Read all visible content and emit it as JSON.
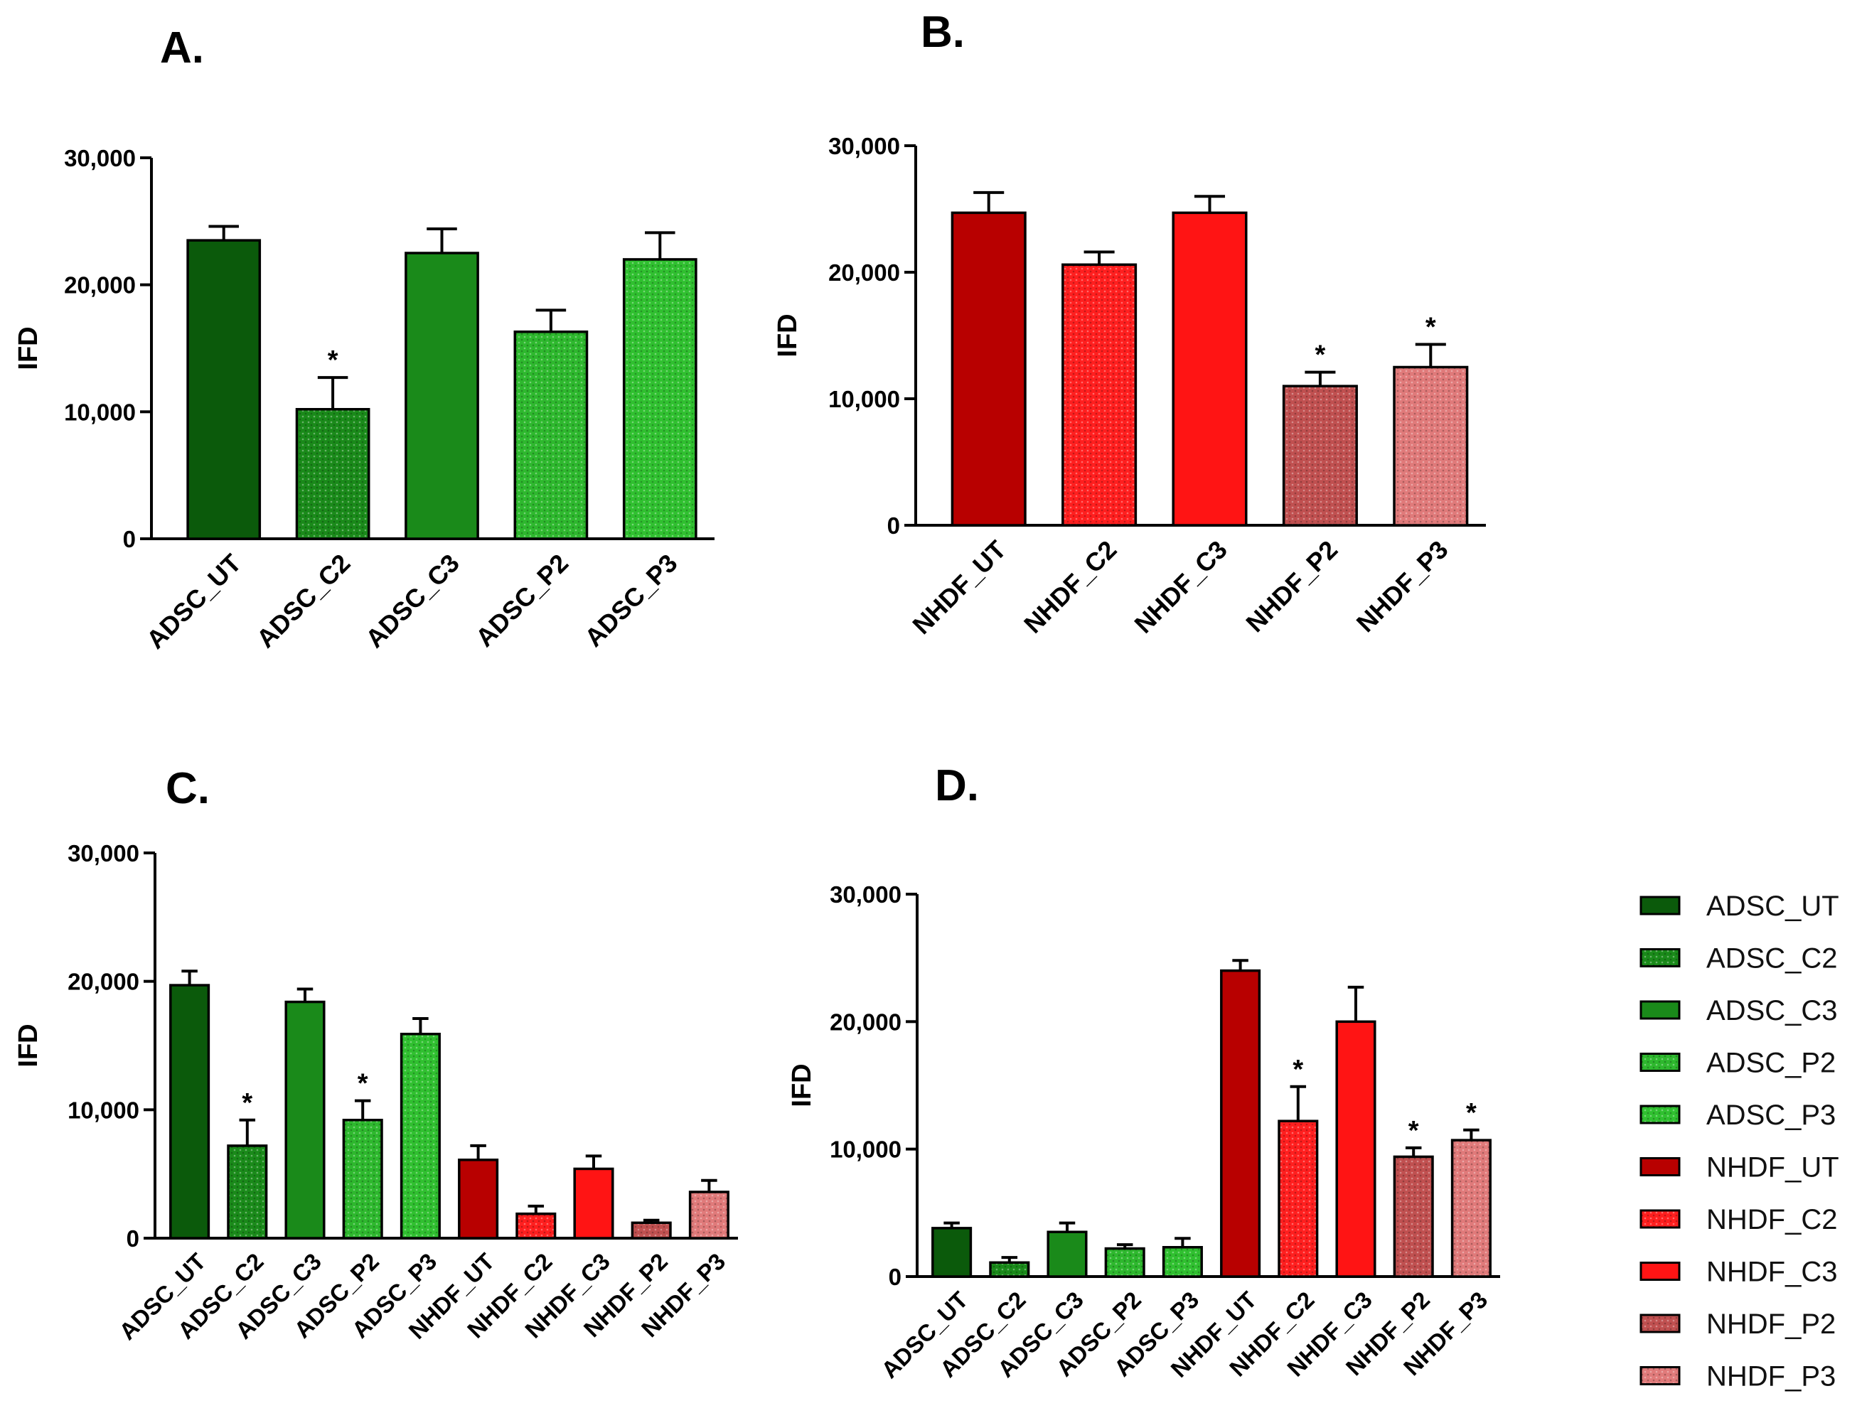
{
  "panels": {
    "A": {
      "letter": "A."
    },
    "B": {
      "letter": "B."
    },
    "C": {
      "letter": "C."
    },
    "D": {
      "letter": "D."
    }
  },
  "colors": {
    "ADSC_UT": "#0b5a0b",
    "ADSC_C2": "#1a8a1a",
    "ADSC_C3": "#1a8a1a",
    "ADSC_P2": "#2eb82e",
    "ADSC_P3": "#30c030",
    "NHDF_UT": "#b80000",
    "NHDF_C2": "#ff1f1f",
    "NHDF_C3": "#ff1414",
    "NHDF_P2": "#c05050",
    "NHDF_P3": "#e07a7a"
  },
  "patterns": {
    "ADSC_UT": "solid",
    "ADSC_C2": "dots",
    "ADSC_C3": "solid",
    "ADSC_P2": "dots",
    "ADSC_P3": "dots",
    "NHDF_UT": "solid",
    "NHDF_C2": "dots",
    "NHDF_C3": "solid",
    "NHDF_P2": "dots",
    "NHDF_P3": "dots"
  },
  "legend": {
    "items": [
      {
        "label": "ADSC_UT",
        "key": "ADSC_UT"
      },
      {
        "label": "ADSC_C2",
        "key": "ADSC_C2"
      },
      {
        "label": "ADSC_C3",
        "key": "ADSC_C3"
      },
      {
        "label": "ADSC_P2",
        "key": "ADSC_P2"
      },
      {
        "label": "ADSC_P3",
        "key": "ADSC_P3"
      },
      {
        "label": "NHDF_UT",
        "key": "NHDF_UT"
      },
      {
        "label": "NHDF_C2",
        "key": "NHDF_C2"
      },
      {
        "label": "NHDF_C3",
        "key": "NHDF_C3"
      },
      {
        "label": "NHDF_P2",
        "key": "NHDF_P2"
      },
      {
        "label": "NHDF_P3",
        "key": "NHDF_P3"
      }
    ]
  },
  "chart_data": [
    {
      "id": "A",
      "type": "bar",
      "title": "A.",
      "ylabel": "IFD",
      "ylim": [
        0,
        30000
      ],
      "yticks": [
        0,
        10000,
        20000,
        30000
      ],
      "ytick_labels": [
        "0",
        "10,000",
        "20,000",
        "30,000"
      ],
      "categories": [
        "ADSC_UT",
        "ADSC_C2",
        "ADSC_C3",
        "ADSC_P2",
        "ADSC_P3"
      ],
      "values": [
        23500,
        10200,
        22500,
        16300,
        22000
      ],
      "errors": [
        1100,
        2500,
        1900,
        1700,
        2100
      ],
      "significant": [
        false,
        true,
        false,
        false,
        false
      ],
      "star_label": "*"
    },
    {
      "id": "B",
      "type": "bar",
      "title": "B.",
      "ylabel": "IFD",
      "ylim": [
        0,
        30000
      ],
      "yticks": [
        0,
        10000,
        20000,
        30000
      ],
      "ytick_labels": [
        "0",
        "10,000",
        "20,000",
        "30,000"
      ],
      "categories": [
        "NHDF_UT",
        "NHDF_C2",
        "NHDF_C3",
        "NHDF_P2",
        "NHDF_P3"
      ],
      "values": [
        24700,
        20600,
        24700,
        11000,
        12500
      ],
      "errors": [
        1600,
        1000,
        1300,
        1100,
        1800
      ],
      "significant": [
        false,
        false,
        false,
        true,
        true
      ],
      "star_label": "*"
    },
    {
      "id": "C",
      "type": "bar",
      "title": "C.",
      "ylabel": "IFD",
      "ylim": [
        0,
        30000
      ],
      "yticks": [
        0,
        10000,
        20000,
        30000
      ],
      "ytick_labels": [
        "0",
        "10,000",
        "20,000",
        "30,000"
      ],
      "categories": [
        "ADSC_UT",
        "ADSC_C2",
        "ADSC_C3",
        "ADSC_P2",
        "ADSC_P3",
        "NHDF_UT",
        "NHDF_C2",
        "NHDF_C3",
        "NHDF_P2",
        "NHDF_P3"
      ],
      "values": [
        19700,
        7200,
        18400,
        9200,
        15900,
        6100,
        1900,
        5400,
        1200,
        3600
      ],
      "errors": [
        1100,
        2000,
        1000,
        1500,
        1200,
        1100,
        600,
        1000,
        200,
        900
      ],
      "significant": [
        false,
        true,
        false,
        true,
        false,
        false,
        false,
        false,
        false,
        false
      ],
      "star_label": "*"
    },
    {
      "id": "D",
      "type": "bar",
      "title": "D.",
      "ylabel": "IFD",
      "ylim": [
        0,
        30000
      ],
      "yticks": [
        0,
        10000,
        20000,
        30000
      ],
      "ytick_labels": [
        "0",
        "10,000",
        "20,000",
        "30,000"
      ],
      "categories": [
        "ADSC_UT",
        "ADSC_C2",
        "ADSC_C3",
        "ADSC_P2",
        "ADSC_P3",
        "NHDF_UT",
        "NHDF_C2",
        "NHDF_C3",
        "NHDF_P2",
        "NHDF_P3"
      ],
      "values": [
        3800,
        1100,
        3500,
        2200,
        2300,
        24000,
        12200,
        20000,
        9400,
        10700
      ],
      "errors": [
        400,
        400,
        700,
        300,
        700,
        800,
        2700,
        2700,
        700,
        800
      ],
      "significant": [
        false,
        false,
        false,
        false,
        false,
        false,
        true,
        false,
        true,
        true
      ],
      "star_label": "*"
    }
  ]
}
